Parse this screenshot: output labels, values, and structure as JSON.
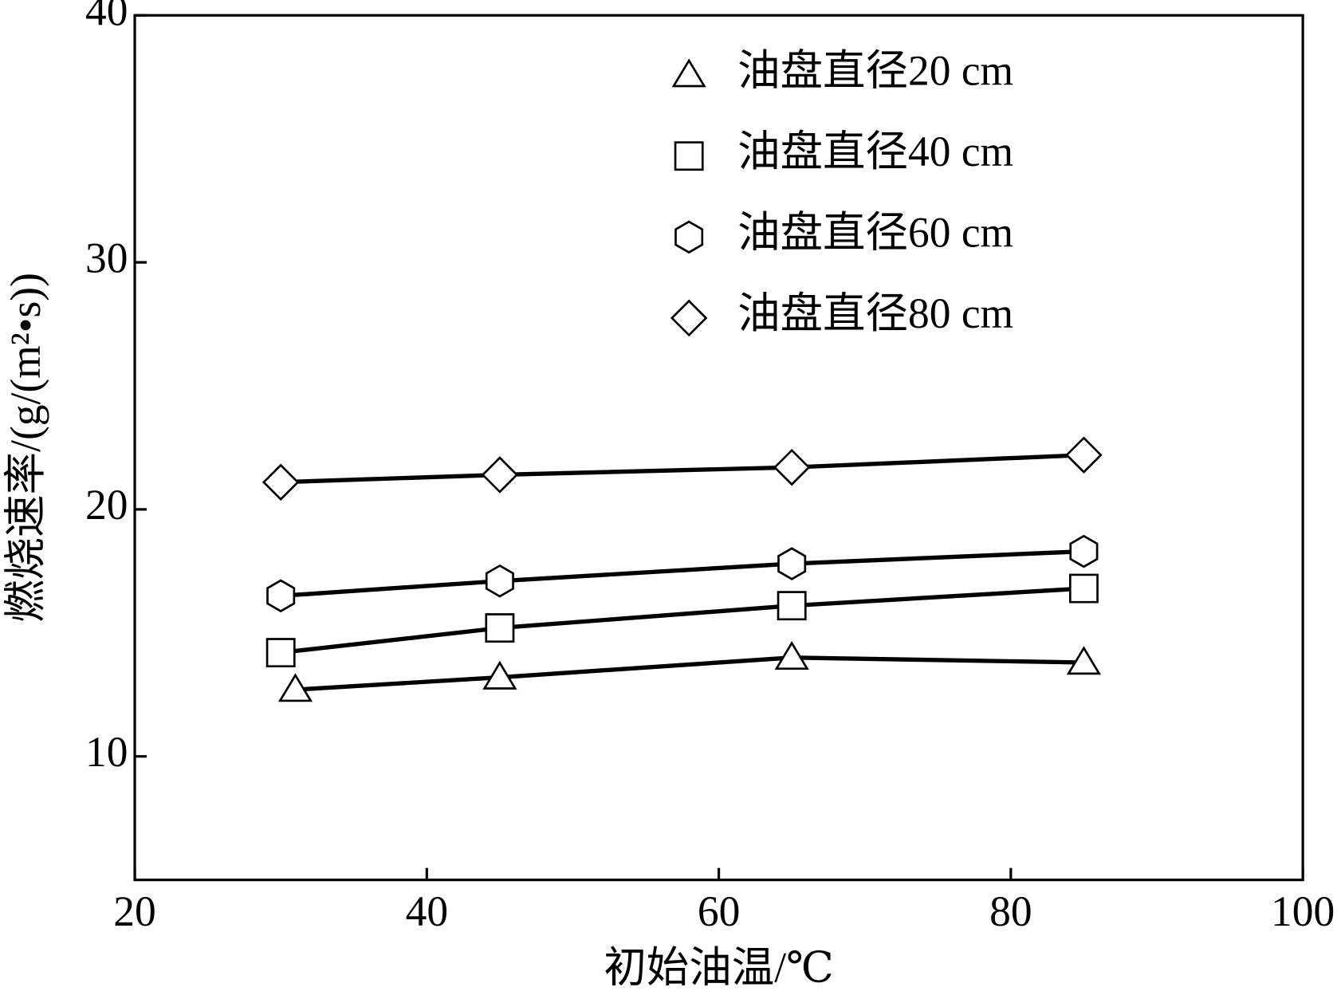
{
  "chart_data": {
    "type": "line",
    "xlabel": "初始油温/℃",
    "ylabel": "燃烧速率/(g/(m²•s))",
    "xlim": [
      20,
      100
    ],
    "xticks": [
      20,
      40,
      60,
      80,
      100
    ],
    "ylim": [
      5,
      40
    ],
    "yticks": [
      10,
      20,
      30,
      40
    ],
    "legend": "upper right",
    "series": [
      {
        "name": "油盘直径20 cm",
        "color": "#000000",
        "marker": "triangle",
        "x": [
          31,
          45,
          65,
          85
        ],
        "values": [
          12.7,
          13.2,
          14.0,
          13.8
        ]
      },
      {
        "name": "油盘直径40 cm",
        "color": "#000000",
        "marker": "square",
        "x": [
          30,
          45,
          65,
          85
        ],
        "values": [
          14.2,
          15.2,
          16.1,
          16.8
        ]
      },
      {
        "name": "油盘直径60 cm",
        "color": "#000000",
        "marker": "hexagon",
        "x": [
          30,
          45,
          65,
          85
        ],
        "values": [
          16.5,
          17.1,
          17.8,
          18.3
        ]
      },
      {
        "name": "油盘直径80 cm",
        "color": "#000000",
        "marker": "diamond",
        "x": [
          30,
          45,
          65,
          85
        ],
        "values": [
          21.1,
          21.4,
          21.7,
          22.2
        ]
      }
    ]
  }
}
